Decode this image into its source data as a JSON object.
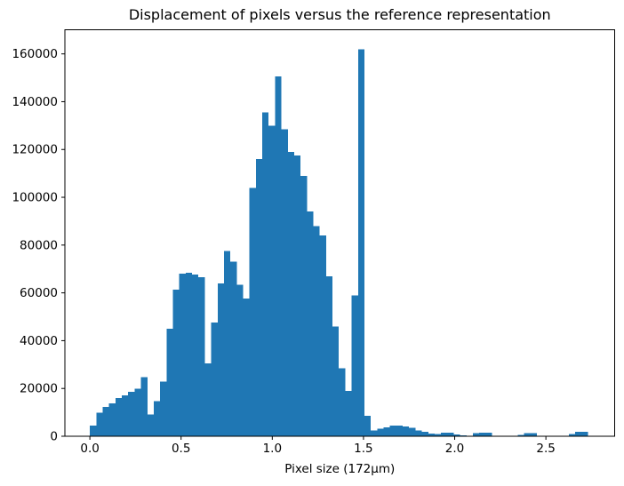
{
  "chart_data": {
    "type": "bar",
    "subtype": "histogram",
    "title": "Displacement of pixels versus the reference representation",
    "xlabel": "Pixel size (172µm)",
    "ylabel": "",
    "bar_color": "#1f77b4",
    "spine_color": "#000000",
    "background_color": "#ffffff",
    "bin_start": 0.0,
    "bin_width": 0.035,
    "values": [
      4500,
      9800,
      12200,
      13700,
      16000,
      17100,
      18500,
      19800,
      24800,
      9100,
      14700,
      22800,
      44900,
      61400,
      68000,
      68500,
      67700,
      66500,
      30500,
      47500,
      64000,
      77500,
      73000,
      63300,
      57700,
      104000,
      116000,
      135500,
      130000,
      150500,
      128500,
      119000,
      117500,
      109000,
      94000,
      88000,
      84000,
      67000,
      46000,
      28500,
      19000,
      59000,
      162000,
      8500,
      2500,
      3200,
      3700,
      4400,
      4400,
      4100,
      3500,
      2500,
      1900,
      1200,
      1000,
      1400,
      1400,
      700,
      400,
      0,
      1300,
      1400,
      1400,
      0,
      0,
      0,
      0,
      600,
      1300,
      1300,
      0,
      0,
      0,
      0,
      0,
      1000,
      1900,
      1900,
      0,
      0
    ],
    "xlim": [
      -0.137,
      2.877
    ],
    "ylim": [
      0,
      170100
    ],
    "xtick_values": [
      0.0,
      0.5,
      1.0,
      1.5,
      2.0,
      2.5
    ],
    "xtick_labels": [
      "0.0",
      "0.5",
      "1.0",
      "1.5",
      "2.0",
      "2.5"
    ],
    "ytick_values": [
      0,
      20000,
      40000,
      60000,
      80000,
      100000,
      120000,
      140000,
      160000
    ],
    "ytick_labels": [
      "0",
      "20000",
      "40000",
      "60000",
      "80000",
      "100000",
      "120000",
      "140000",
      "160000"
    ],
    "grid": "off",
    "legend": "none"
  }
}
